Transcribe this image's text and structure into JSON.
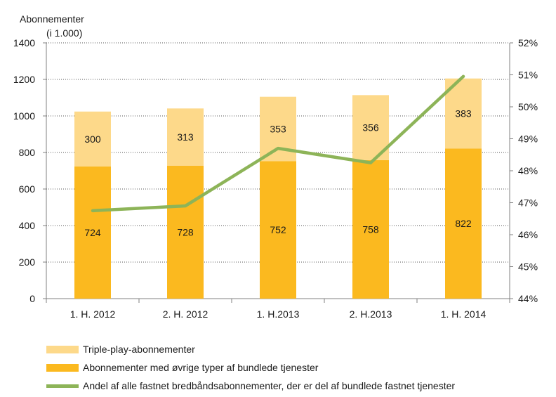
{
  "chart_data": {
    "type": "bar",
    "stacked": true,
    "ylabel_line1": "Abonnementer",
    "ylabel_line2": "(i 1.000)",
    "categories": [
      "1. H. 2012",
      "2. H. 2012",
      "1. H.2013",
      "2. H.2013",
      "1. H. 2014"
    ],
    "ylim": [
      0,
      1400
    ],
    "yticks": [
      0,
      200,
      400,
      600,
      800,
      1000,
      1200,
      1400
    ],
    "y2lim": [
      44,
      52
    ],
    "y2ticks": [
      "44%",
      "45%",
      "46%",
      "47%",
      "48%",
      "49%",
      "50%",
      "51%",
      "52%"
    ],
    "grid": true,
    "legend_position": "bottom",
    "series": [
      {
        "name": "Abonnementer med øvrige typer af bundlede tjenester",
        "kind": "bar",
        "color": "#fbb91f",
        "values": [
          724,
          728,
          752,
          758,
          822
        ]
      },
      {
        "name": "Triple-play-abonnementer",
        "kind": "bar",
        "color": "#fdd98a",
        "values": [
          300,
          313,
          353,
          356,
          383
        ]
      },
      {
        "name": "Andel af alle fastnet bredbåndsabonnementer, der er del af bundlede fastnet tjenester",
        "kind": "line",
        "axis": "right",
        "color": "#8db458",
        "values": [
          46.75,
          46.9,
          48.7,
          48.25,
          50.95
        ]
      }
    ]
  }
}
